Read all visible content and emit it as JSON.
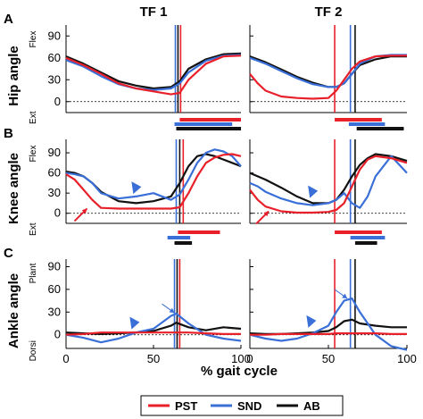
{
  "chart_data": {
    "type": "line",
    "xlabel": "% gait cycle",
    "xlim": [
      0,
      100
    ],
    "xticks": [
      "0",
      "50",
      "100"
    ],
    "columns": [
      "TF 1",
      "TF 2"
    ],
    "legend": {
      "placement": "bottom-center",
      "entries": [
        {
          "name": "PST",
          "color": "#e8202a"
        },
        {
          "name": "SND",
          "color": "#3a6fd8"
        },
        {
          "name": "AB",
          "color": "#111111"
        }
      ]
    },
    "rows": [
      {
        "letter": "A",
        "ylabel": "Hip angle",
        "pos_label": "Flex",
        "neg_label": "Ext",
        "ylim": [
          -15,
          105
        ],
        "yticks": [
          "0",
          "30",
          "60",
          "90"
        ],
        "panels": [
          {
            "x": [
              0,
              10,
              20,
              30,
              40,
              50,
              60,
              65,
              70,
              80,
              90,
              100
            ],
            "series": {
              "PST": [
                60,
                50,
                38,
                25,
                18,
                14,
                10,
                12,
                30,
                52,
                62,
                63
              ],
              "SND": [
                57,
                48,
                35,
                24,
                18,
                16,
                18,
                25,
                40,
                56,
                63,
                64
              ],
              "AB": [
                62,
                52,
                40,
                28,
                22,
                18,
                20,
                28,
                45,
                58,
                65,
                66
              ]
            },
            "vlines": {
              "PST": 65.5,
              "SND": 62.5,
              "AB": 64
            },
            "bars": [
              {
                "series": "PST",
                "start": 65,
                "end": 100
              },
              {
                "series": "SND",
                "start": 62,
                "end": 95
              },
              {
                "series": "AB",
                "start": 63,
                "end": 100
              }
            ]
          },
          {
            "x": [
              0,
              5,
              10,
              20,
              30,
              40,
              50,
              55,
              60,
              65,
              70,
              80,
              90,
              100
            ],
            "series": {
              "PST": [
                38,
                25,
                15,
                7,
                5,
                4,
                5,
                15,
                30,
                45,
                55,
                62,
                63,
                63
              ],
              "SND": [
                60,
                56,
                52,
                42,
                32,
                24,
                20,
                20,
                25,
                38,
                52,
                62,
                64,
                64
              ],
              "AB": [
                62,
                58,
                54,
                44,
                34,
                26,
                20,
                20,
                25,
                38,
                50,
                58,
                62,
                62
              ]
            },
            "vlines": {
              "PST": 54,
              "SND": 64,
              "AB": 67
            },
            "bars": [
              {
                "series": "PST",
                "start": 54,
                "end": 84
              },
              {
                "series": "SND",
                "start": 63,
                "end": 86
              },
              {
                "series": "AB",
                "start": 68,
                "end": 98
              }
            ]
          }
        ]
      },
      {
        "letter": "B",
        "ylabel": "Knee angle",
        "pos_label": "Flex",
        "neg_label": "Ext",
        "ylim": [
          -15,
          110
        ],
        "yticks": [
          "0",
          "30",
          "60",
          "90"
        ],
        "panels": [
          {
            "x": [
              0,
              5,
              10,
              15,
              20,
              30,
              40,
              50,
              60,
              65,
              70,
              75,
              80,
              85,
              90,
              95,
              100
            ],
            "series": {
              "PST": [
                58,
                50,
                35,
                20,
                8,
                7,
                7,
                7,
                7,
                9,
                30,
                55,
                75,
                83,
                87,
                88,
                85
              ],
              "SND": [
                60,
                58,
                55,
                45,
                30,
                22,
                25,
                30,
                20,
                28,
                50,
                75,
                90,
                95,
                92,
                85,
                70
              ],
              "AB": [
                62,
                60,
                55,
                45,
                32,
                18,
                15,
                18,
                25,
                45,
                70,
                85,
                88,
                85,
                80,
                75,
                70
              ]
            },
            "vlines": {
              "PST": 67,
              "SND": 63,
              "AB": 65
            },
            "bars": [
              {
                "series": "PST",
                "start": 64,
                "end": 88
              },
              {
                "series": "SND",
                "start": 58,
                "end": 71
              },
              {
                "series": "AB",
                "start": 62,
                "end": 72
              }
            ]
          },
          {
            "x": [
              0,
              5,
              10,
              20,
              30,
              40,
              50,
              55,
              60,
              65,
              70,
              75,
              80,
              90,
              100
            ],
            "series": {
              "PST": [
                35,
                20,
                10,
                3,
                1,
                1,
                2,
                5,
                15,
                40,
                65,
                80,
                85,
                82,
                75
              ],
              "SND": [
                45,
                40,
                32,
                22,
                15,
                12,
                15,
                20,
                30,
                15,
                8,
                25,
                55,
                85,
                60
              ],
              "AB": [
                60,
                55,
                50,
                38,
                25,
                15,
                15,
                20,
                35,
                55,
                72,
                82,
                88,
                85,
                78
              ]
            },
            "vlines": {
              "PST": 54,
              "SND": 64,
              "AB": 67
            },
            "bars": [
              {
                "series": "PST",
                "start": 54,
                "end": 84
              },
              {
                "series": "SND",
                "start": 64,
                "end": 86
              },
              {
                "series": "AB",
                "start": 67,
                "end": 81
              }
            ]
          }
        ]
      },
      {
        "letter": "C",
        "ylabel": "Ankle angle",
        "pos_label": "Plant",
        "neg_label": "Dorsi",
        "ylim": [
          -18,
          100
        ],
        "yticks": [
          "0",
          "30",
          "60",
          "90"
        ],
        "panels": [
          {
            "x": [
              0,
              10,
              20,
              30,
              40,
              50,
              60,
              63,
              70,
              80,
              90,
              100
            ],
            "series": {
              "PST": [
                0,
                1,
                3,
                3,
                3,
                3,
                3,
                3,
                3,
                2,
                1,
                1
              ],
              "SND": [
                0,
                -4,
                -10,
                -5,
                3,
                8,
                25,
                28,
                15,
                0,
                -5,
                -8
              ],
              "AB": [
                3,
                2,
                1,
                2,
                3,
                5,
                12,
                16,
                10,
                6,
                10,
                8
              ]
            },
            "vlines": {
              "PST": 65,
              "SND": 62,
              "AB": 63.5
            },
            "bars": []
          },
          {
            "x": [
              0,
              10,
              20,
              30,
              40,
              50,
              55,
              60,
              65,
              70,
              80,
              90,
              100
            ],
            "series": {
              "PST": [
                0,
                0,
                1,
                1,
                1,
                1,
                2,
                2,
                2,
                2,
                2,
                1,
                1
              ],
              "SND": [
                0,
                -5,
                -8,
                -5,
                2,
                12,
                30,
                45,
                48,
                30,
                0,
                -15,
                -20
              ],
              "AB": [
                2,
                1,
                1,
                2,
                3,
                5,
                10,
                18,
                20,
                15,
                12,
                10,
                10
              ]
            },
            "vlines": {
              "PST": 54,
              "SND": 64,
              "AB": 67
            },
            "bars": []
          }
        ]
      }
    ],
    "annotations": [
      {
        "type": "arrowhead",
        "row": 1,
        "col": 0,
        "x": 41,
        "y": 34
      },
      {
        "type": "arrow",
        "row": 1,
        "col": 0,
        "x": 12,
        "y": 7
      },
      {
        "type": "arrowhead",
        "row": 1,
        "col": 1,
        "x": 41,
        "y": 28
      },
      {
        "type": "arrow",
        "row": 1,
        "col": 1,
        "x": 12,
        "y": 3
      },
      {
        "type": "arrowhead",
        "row": 2,
        "col": 0,
        "x": 40,
        "y": 12
      },
      {
        "type": "arrow",
        "row": 2,
        "col": 0,
        "x": 62,
        "y": 29
      },
      {
        "type": "arrowhead",
        "row": 2,
        "col": 1,
        "x": 40,
        "y": 14
      },
      {
        "type": "arrow",
        "row": 2,
        "col": 1,
        "x": 62,
        "y": 48
      }
    ]
  }
}
